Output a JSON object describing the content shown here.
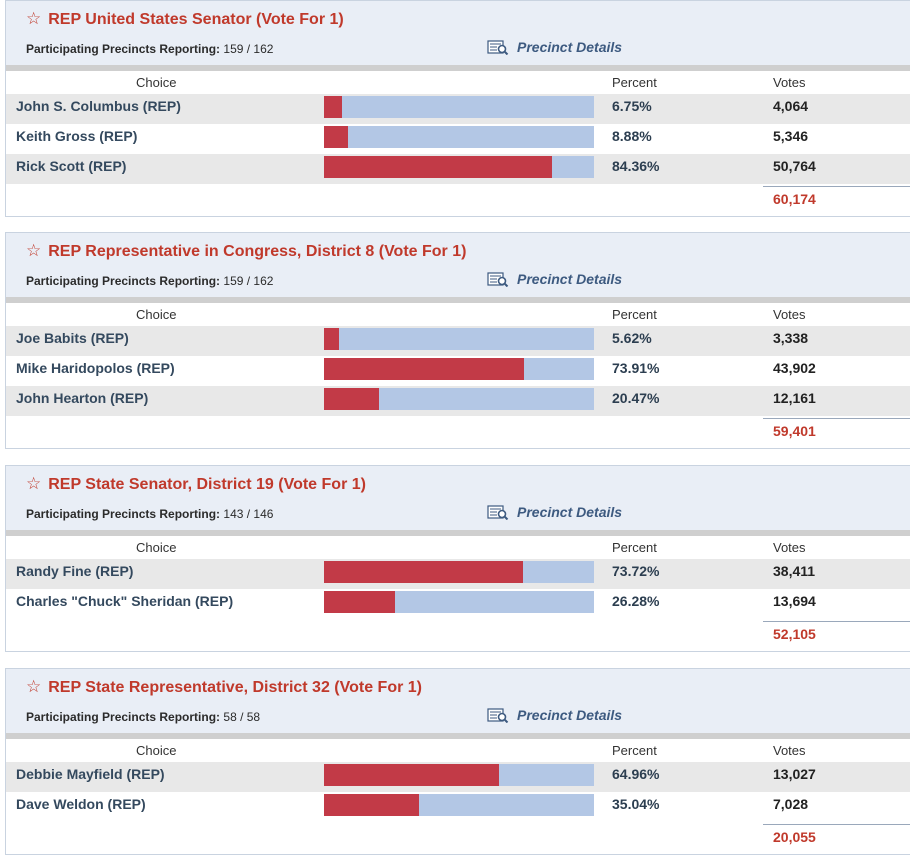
{
  "columns": {
    "choice": "Choice",
    "percent": "Percent",
    "votes": "Votes"
  },
  "reporting_label": "Participating Precincts Reporting:",
  "precinct_details_label": "Precinct Details",
  "colors": {
    "title": "#c0392b",
    "bar_fill": "#c23a47",
    "bar_track": "#b3c7e5"
  },
  "races": [
    {
      "title": "REP United States Senator (Vote For 1)",
      "reporting": "159 / 162",
      "candidates": [
        {
          "name": "John S. Columbus (REP)",
          "percent": "6.75%",
          "share": 6.75,
          "votes": "4,064"
        },
        {
          "name": "Keith Gross (REP)",
          "percent": "8.88%",
          "share": 8.88,
          "votes": "5,346"
        },
        {
          "name": "Rick Scott (REP)",
          "percent": "84.36%",
          "share": 84.36,
          "votes": "50,764"
        }
      ],
      "total": "60,174"
    },
    {
      "title": "REP Representative in Congress, District 8 (Vote For 1)",
      "reporting": "159 / 162",
      "candidates": [
        {
          "name": "Joe Babits (REP)",
          "percent": "5.62%",
          "share": 5.62,
          "votes": "3,338"
        },
        {
          "name": "Mike Haridopolos (REP)",
          "percent": "73.91%",
          "share": 73.91,
          "votes": "43,902"
        },
        {
          "name": "John Hearton (REP)",
          "percent": "20.47%",
          "share": 20.47,
          "votes": "12,161"
        }
      ],
      "total": "59,401"
    },
    {
      "title": "REP State Senator, District 19 (Vote For 1)",
      "reporting": "143 / 146",
      "candidates": [
        {
          "name": "Randy Fine (REP)",
          "percent": "73.72%",
          "share": 73.72,
          "votes": "38,411"
        },
        {
          "name": "Charles \"Chuck\" Sheridan (REP)",
          "percent": "26.28%",
          "share": 26.28,
          "votes": "13,694"
        }
      ],
      "total": "52,105"
    },
    {
      "title": "REP State Representative, District 32 (Vote For 1)",
      "reporting": "58 / 58",
      "candidates": [
        {
          "name": "Debbie Mayfield (REP)",
          "percent": "64.96%",
          "share": 64.96,
          "votes": "13,027"
        },
        {
          "name": "Dave Weldon (REP)",
          "percent": "35.04%",
          "share": 35.04,
          "votes": "7,028"
        }
      ],
      "total": "20,055"
    }
  ]
}
